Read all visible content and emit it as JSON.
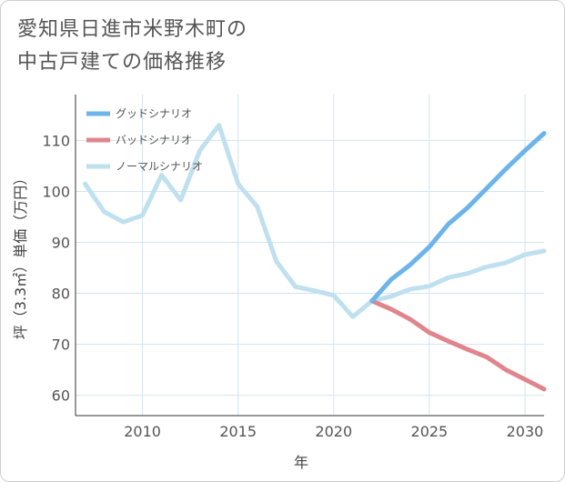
{
  "title": "愛知県日進市米野木町の\n中古戸建ての価格推移",
  "chart_data": {
    "type": "line",
    "xlabel": "年",
    "ylabel": "坪（3.3㎡）単価（万円）",
    "xlim": [
      2006.5,
      2031
    ],
    "ylim": [
      56,
      119
    ],
    "x_ticks": [
      2010,
      2015,
      2020,
      2025,
      2030
    ],
    "y_ticks": [
      60,
      70,
      80,
      90,
      100,
      110
    ],
    "x_tick_labels": [
      "2010",
      "2015",
      "2020",
      "2025",
      "2030"
    ],
    "y_tick_labels": [
      "60",
      "70",
      "80",
      "90",
      "100",
      "110"
    ],
    "grid": true,
    "legend_position": "top-left",
    "series": [
      {
        "name": "グッドシナリオ",
        "color": "#6cb4ea",
        "x": [
          2022,
          2023,
          2024,
          2025,
          2026,
          2027,
          2028,
          2029,
          2030,
          2031
        ],
        "y": [
          78.5,
          82.7,
          85.6,
          89.1,
          93.6,
          96.8,
          100.6,
          104.4,
          108.0,
          111.4
        ]
      },
      {
        "name": "バッドシナリオ",
        "color": "#e0858c",
        "x": [
          2022,
          2023,
          2024,
          2025,
          2026,
          2027,
          2028,
          2029,
          2030,
          2031
        ],
        "y": [
          78.5,
          76.9,
          74.9,
          72.3,
          70.6,
          69.0,
          67.5,
          65.0,
          63.1,
          61.2
        ]
      },
      {
        "name": "ノーマルシナリオ",
        "color": "#bfe0ef",
        "x": [
          2007,
          2008,
          2009,
          2010,
          2011,
          2012,
          2013,
          2014,
          2015,
          2016,
          2017,
          2018,
          2019,
          2020,
          2021,
          2022,
          2023,
          2024,
          2025,
          2026,
          2027,
          2028,
          2029,
          2030,
          2031
        ],
        "y": [
          101.5,
          96.0,
          94.0,
          95.3,
          103.2,
          98.3,
          108.0,
          113.0,
          101.5,
          97.0,
          86.3,
          81.3,
          80.5,
          79.6,
          75.4,
          78.5,
          79.4,
          80.8,
          81.4,
          83.1,
          83.9,
          85.2,
          86.0,
          87.6,
          88.3
        ]
      }
    ]
  }
}
